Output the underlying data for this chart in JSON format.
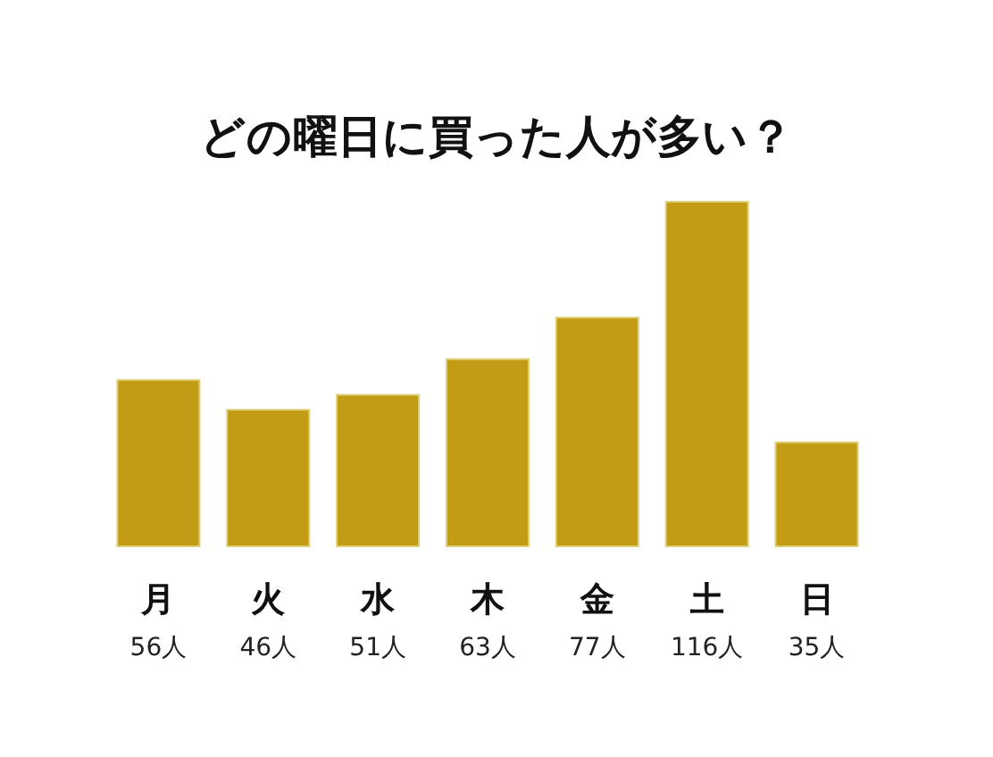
{
  "chart_data": {
    "type": "bar",
    "title": "どの曜日に買った人が多い？",
    "categories": [
      "月",
      "火",
      "水",
      "木",
      "金",
      "土",
      "日"
    ],
    "values": [
      56,
      46,
      51,
      63,
      77,
      116,
      35
    ],
    "value_labels": [
      "56人",
      "46人",
      "51人",
      "63人",
      "77人",
      "116人",
      "35人"
    ],
    "color": "#c19c14"
  }
}
